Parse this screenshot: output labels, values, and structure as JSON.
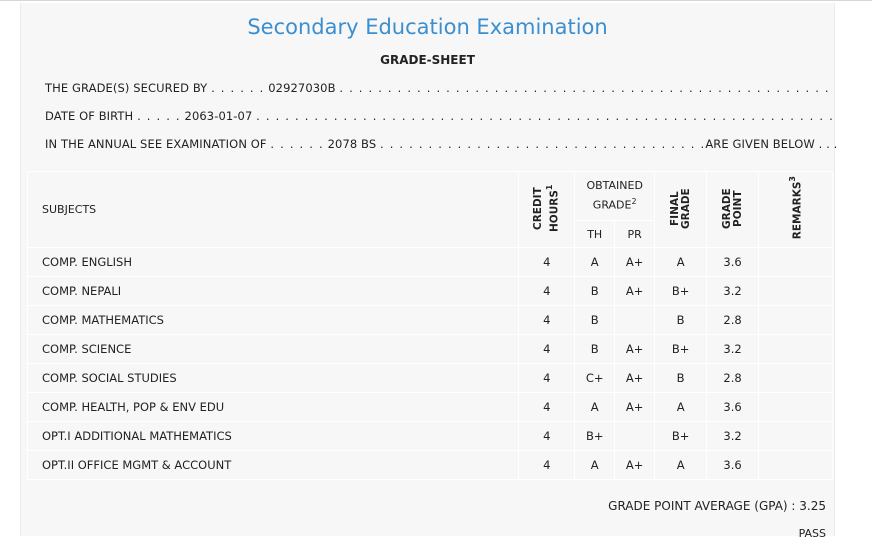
{
  "header": {
    "title": "Secondary Education Examination",
    "subtitle": "GRADE-SHEET"
  },
  "info": {
    "secured_label": "THE GRADE(S) SECURED BY",
    "secured_value": "02927030B",
    "dob_label": "DATE OF BIRTH",
    "dob_value": "2063-01-07",
    "exam_label": "IN THE ANNUAL SEE EXAMINATION OF",
    "exam_value": "2078 BS",
    "exam_suffix": "ARE GIVEN BELOW . . ."
  },
  "table": {
    "headers": {
      "subjects": "SUBJECTS",
      "credit_hours": "CREDIT HOURS",
      "credit_sup": "1",
      "obtained_grade": "OBTAINED GRADE",
      "obtained_sup": "2",
      "th": "TH",
      "pr": "PR",
      "final_grade": "FINAL GRADE",
      "grade_point": "GRADE POINT",
      "remarks": "REMARKS",
      "remarks_sup": "3"
    },
    "rows": [
      {
        "subject": "COMP. ENGLISH",
        "credit": "4",
        "th": "A",
        "pr": "A+",
        "final": "A",
        "gp": "3.6",
        "remarks": ""
      },
      {
        "subject": "COMP. NEPALI",
        "credit": "4",
        "th": "B",
        "pr": "A+",
        "final": "B+",
        "gp": "3.2",
        "remarks": ""
      },
      {
        "subject": "COMP. MATHEMATICS",
        "credit": "4",
        "th": "B",
        "pr": "",
        "final": "B",
        "gp": "2.8",
        "remarks": ""
      },
      {
        "subject": "COMP. SCIENCE",
        "credit": "4",
        "th": "B",
        "pr": "A+",
        "final": "B+",
        "gp": "3.2",
        "remarks": ""
      },
      {
        "subject": "COMP. SOCIAL STUDIES",
        "credit": "4",
        "th": "C+",
        "pr": "A+",
        "final": "B",
        "gp": "2.8",
        "remarks": ""
      },
      {
        "subject": "COMP. HEALTH, POP & ENV EDU",
        "credit": "4",
        "th": "A",
        "pr": "A+",
        "final": "A",
        "gp": "3.6",
        "remarks": ""
      },
      {
        "subject": "OPT.I ADDITIONAL MATHEMATICS",
        "credit": "4",
        "th": "B+",
        "pr": "",
        "final": "B+",
        "gp": "3.2",
        "remarks": ""
      },
      {
        "subject": "OPT.II OFFICE MGMT & ACCOUNT",
        "credit": "4",
        "th": "A",
        "pr": "A+",
        "final": "A",
        "gp": "3.6",
        "remarks": ""
      }
    ]
  },
  "summary": {
    "gpa_label": "GRADE POINT AVERAGE (GPA) :",
    "gpa_value": "3.25",
    "result": "PASS"
  },
  "colors": {
    "title": "#3b8fd0",
    "sheet_bg": "#f7f7f7"
  }
}
